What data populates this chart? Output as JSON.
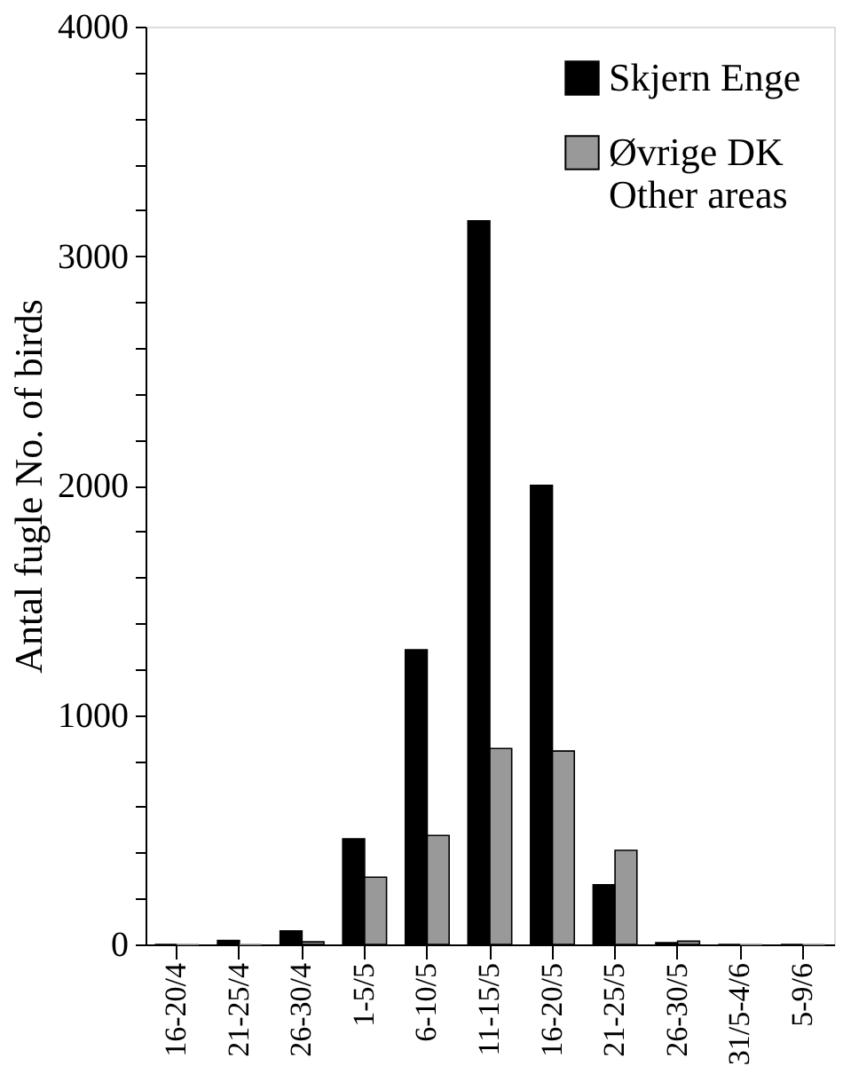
{
  "chart_data": {
    "type": "bar",
    "ylabel": "Antal fugle No. of birds",
    "categories": [
      "16-20/4",
      "21-25/4",
      "26-30/4",
      "1-5/5",
      "6-10/5",
      "11-15/5",
      "16-20/5",
      "21-25/5",
      "26-30/5",
      "31/5-4/6",
      "5-9/6"
    ],
    "series": [
      {
        "name": "Skjern Enge",
        "color": "#000000",
        "values": [
          0,
          17,
          59,
          460,
          1284,
          3154,
          2001,
          260,
          8,
          0,
          0
        ]
      },
      {
        "name": "Øvrige DK\nOther areas",
        "color": "#999999",
        "values": [
          0,
          0,
          11,
          293,
          475,
          854,
          843,
          410,
          14,
          0,
          0
        ]
      }
    ],
    "ylim": [
      0,
      4000
    ],
    "yticks": [
      0,
      {
        "value": 200,
        "label": null
      },
      {
        "value": 400,
        "label": null
      },
      {
        "value": 600,
        "label": null
      },
      {
        "value": 800,
        "label": null
      },
      1000,
      {
        "value": 1200,
        "label": null
      },
      {
        "value": 1400,
        "label": null
      },
      {
        "value": 1600,
        "label": null
      },
      {
        "value": 1800,
        "label": null
      },
      2000,
      {
        "value": 2200,
        "label": null
      },
      {
        "value": 2400,
        "label": null
      },
      {
        "value": 2600,
        "label": null
      },
      {
        "value": 2800,
        "label": null
      },
      3000,
      {
        "value": 3200,
        "label": null
      },
      {
        "value": 3400,
        "label": null
      },
      {
        "value": 3600,
        "label": null
      },
      {
        "value": 3800,
        "label": null
      },
      4000
    ],
    "grid": false,
    "legend": "top right"
  }
}
